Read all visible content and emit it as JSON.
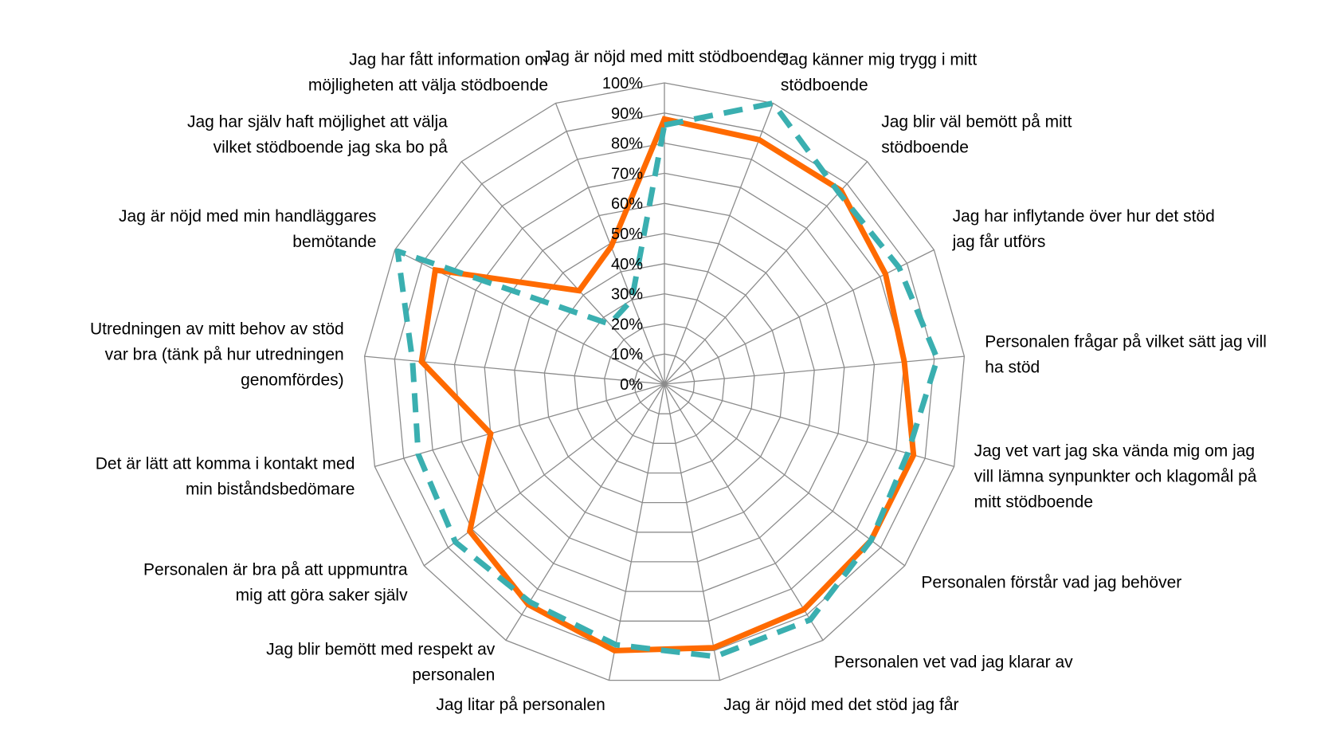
{
  "chart_data": {
    "type": "radar",
    "title": "",
    "radial_range": [
      0,
      100
    ],
    "radial_unit": "%",
    "ticks": [
      "0%",
      "10%",
      "20%",
      "30%",
      "40%",
      "50%",
      "60%",
      "70%",
      "80%",
      "90%",
      "100%"
    ],
    "grid": true,
    "legend": "none",
    "categories": [
      "Jag är nöjd med mitt stödboende",
      "Jag känner mig trygg i mitt stödboende",
      "Jag blir väl bemött på mitt stödboende",
      "Jag har inflytande över hur det stöd jag får utförs",
      "Personalen frågar på vilket sätt jag vill ha stöd",
      "Jag vet vart jag ska vända mig om jag vill lämna synpunkter och klagomål på mitt stödboende",
      "Personalen förstår vad jag behöver",
      "Personalen vet vad jag klarar av",
      "Jag är nöjd med det stöd jag får",
      "Jag litar på personalen",
      "Jag blir bemött med respekt av personalen",
      "Personalen är bra på att uppmuntra mig att göra saker själv",
      "Det är lätt att komma i kontakt med min biståndsbedömare",
      "Utredningen av mitt behov av stöd var bra (tänk på hur utredningen genomfördes)",
      "Jag är nöjd med min handläggares bemötande",
      "Jag har själv haft möjlighet att välja vilket stödboende jag ska bo på",
      "Jag har fått information om möjligheten att välja stödboende"
    ],
    "category_lines": [
      [
        "Jag är nöjd med mitt stödboende"
      ],
      [
        "Jag känner mig trygg i mitt",
        "stödboende"
      ],
      [
        "Jag blir väl bemött på mitt",
        "stödboende"
      ],
      [
        "Jag har inflytande över hur det stöd",
        "jag får utförs"
      ],
      [
        "Personalen frågar på vilket sätt jag vill",
        "ha stöd"
      ],
      [
        "Jag vet vart jag ska vända mig om jag",
        "vill lämna synpunkter och klagomål på",
        "mitt stödboende"
      ],
      [
        "Personalen förstår vad jag behöver"
      ],
      [
        "Personalen vet vad jag klarar av"
      ],
      [
        "Jag är nöjd med det stöd jag får"
      ],
      [
        "Jag litar på personalen"
      ],
      [
        "Jag blir bemött med respekt av",
        "personalen"
      ],
      [
        "Personalen är bra på att uppmuntra",
        "mig att göra saker själv"
      ],
      [
        "Det är lätt att komma i kontakt med",
        "min biståndsbedömare"
      ],
      [
        "Utredningen av mitt behov av stöd",
        "var bra (tänk på hur utredningen",
        "genomfördes)"
      ],
      [
        "Jag är nöjd med min handläggares",
        "bemötande"
      ],
      [
        "Jag har själv haft möjlighet att välja",
        "vilket stödboende jag ska bo på"
      ],
      [
        "Jag har fått information om",
        "möjligheten att välja stödboende"
      ]
    ],
    "series": [
      {
        "style": "solid",
        "color": "#FF6A00",
        "values": [
          88,
          87,
          87,
          82,
          80,
          86,
          86,
          88,
          89,
          90,
          86,
          81,
          60,
          81,
          85,
          42,
          49
        ]
      },
      {
        "style": "dashed",
        "color": "#3AAFB0",
        "values": [
          86,
          100,
          86,
          87,
          91,
          84,
          86,
          92,
          92,
          88,
          85,
          87,
          85,
          84,
          99,
          27,
          30
        ]
      }
    ]
  }
}
